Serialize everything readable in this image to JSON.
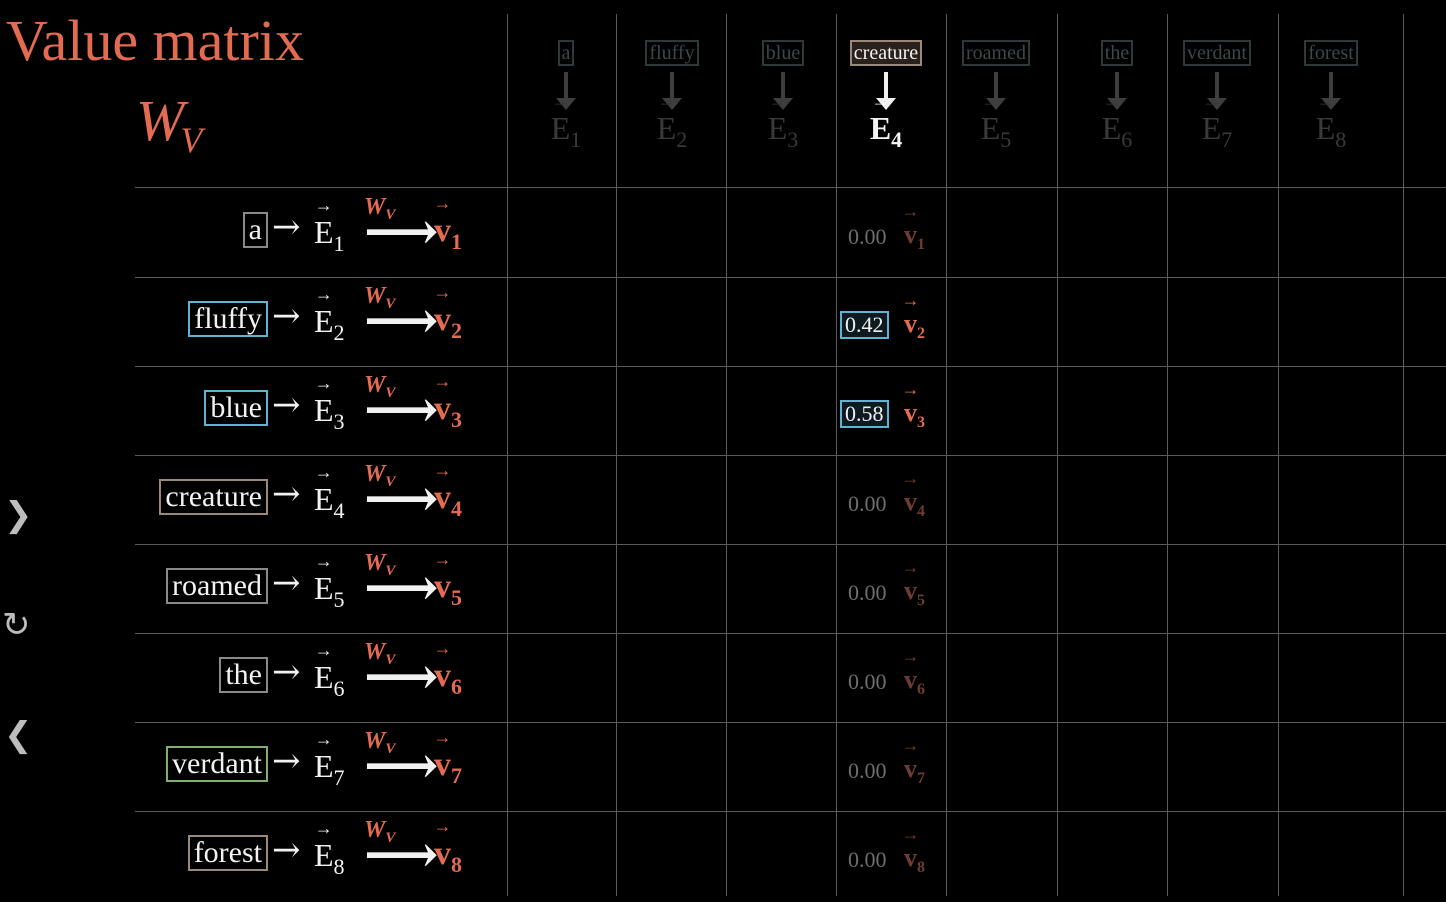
{
  "title": "Value matrix",
  "matrix": {
    "symbol": "W",
    "subscript": "V"
  },
  "columns": [
    {
      "word": "a",
      "evec": "E",
      "index": "1"
    },
    {
      "word": "fluffy",
      "evec": "E",
      "index": "2"
    },
    {
      "word": "blue",
      "evec": "E",
      "index": "3"
    },
    {
      "word": "creature",
      "evec": "E",
      "index": "4"
    },
    {
      "word": "roamed",
      "evec": "E",
      "index": "5"
    },
    {
      "word": "the",
      "evec": "E",
      "index": "6"
    },
    {
      "word": "verdant",
      "evec": "E",
      "index": "7"
    },
    {
      "word": "forest",
      "evec": "E",
      "index": "8"
    }
  ],
  "active_column": "creature",
  "rows": [
    {
      "word": "a",
      "evec": "E",
      "index": "1",
      "wv": "W",
      "wv_sub": "V",
      "vvec": "v",
      "box_color": "#8a8a8a"
    },
    {
      "word": "fluffy",
      "evec": "E",
      "index": "2",
      "wv": "W",
      "wv_sub": "V",
      "vvec": "v",
      "box_color": "#5fb4d4"
    },
    {
      "word": "blue",
      "evec": "E",
      "index": "3",
      "wv": "W",
      "wv_sub": "V",
      "vvec": "v",
      "box_color": "#5fb4d4"
    },
    {
      "word": "creature",
      "evec": "E",
      "index": "4",
      "wv": "W",
      "wv_sub": "V",
      "vvec": "v",
      "box_color": "#9a8878"
    },
    {
      "word": "roamed",
      "evec": "E",
      "index": "5",
      "wv": "W",
      "wv_sub": "V",
      "vvec": "v",
      "box_color": "#8a8a8a"
    },
    {
      "word": "the",
      "evec": "E",
      "index": "6",
      "wv": "W",
      "wv_sub": "V",
      "vvec": "v",
      "box_color": "#8a8a8a"
    },
    {
      "word": "verdant",
      "evec": "E",
      "index": "7",
      "wv": "W",
      "wv_sub": "V",
      "vvec": "v",
      "box_color": "#7fb070"
    },
    {
      "word": "forest",
      "evec": "E",
      "index": "8",
      "wv": "W",
      "wv_sub": "V",
      "vvec": "v",
      "box_color": "#9a8878"
    }
  ],
  "weights": [
    {
      "value": "0.00",
      "vvec": "v",
      "index": "1",
      "highlighted": false
    },
    {
      "value": "0.42",
      "vvec": "v",
      "index": "2",
      "highlighted": true
    },
    {
      "value": "0.58",
      "vvec": "v",
      "index": "3",
      "highlighted": true
    },
    {
      "value": "0.00",
      "vvec": "v",
      "index": "4",
      "highlighted": false
    },
    {
      "value": "0.00",
      "vvec": "v",
      "index": "5",
      "highlighted": false
    },
    {
      "value": "0.00",
      "vvec": "v",
      "index": "6",
      "highlighted": false
    },
    {
      "value": "0.00",
      "vvec": "v",
      "index": "7",
      "highlighted": false
    },
    {
      "value": "0.00",
      "vvec": "v",
      "index": "8",
      "highlighted": false
    }
  ],
  "nav": {
    "next_icon": "chevron-right-icon",
    "replay_icon": "refresh-icon",
    "prev_icon": "chevron-left-icon"
  },
  "colors": {
    "accent": "#e26b52",
    "highlight_box": "#5fb4d4",
    "grid": "#5a5a5a"
  }
}
